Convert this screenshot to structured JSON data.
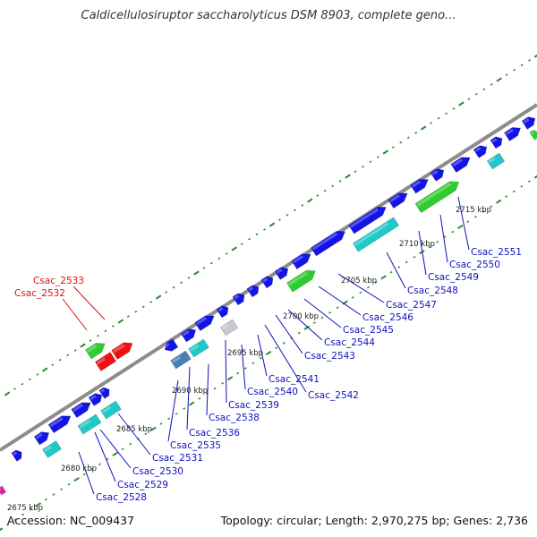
{
  "title": "Caldicellulosiruptor saccharolyticus DSM 8903, complete geno...",
  "footer": {
    "accession": "Accession: NC_009437",
    "summary": "Topology: circular; Length: 2,970,275 bp; Genes: 2,736"
  },
  "colors": {
    "backbone": "#8c8c8c",
    "dots": "#2e8b2e",
    "forward_gene": "#1414e6",
    "reverse_gene": "#20c8c8",
    "green_gene": "#2ecc2e",
    "red_gene": "#ee1111",
    "steel_gene": "#4a7fb5",
    "grey_gene": "#c8c8d2",
    "label_blue": "#1010c0",
    "label_red": "#dd1111"
  },
  "kbp_marks": [
    "2675 kbp",
    "2680 kbp",
    "2685 kbp",
    "2690 kbp",
    "2695 kbp",
    "2700 kbp",
    "2705 kbp",
    "2710 kbp",
    "2715 kbp"
  ],
  "gene_labels_red": [
    "Csac_2533",
    "Csac_2532"
  ],
  "gene_labels_blue": [
    "Csac_2528",
    "Csac_2529",
    "Csac_2530",
    "Csac_2531",
    "Csac_2535",
    "Csac_2536",
    "Csac_2538",
    "Csac_2539",
    "Csac_2540",
    "Csac_2541",
    "Csac_2542",
    "Csac_2543",
    "Csac_2544",
    "Csac_2545",
    "Csac_2546",
    "Csac_2547",
    "Csac_2548",
    "Csac_2549",
    "Csac_2550",
    "Csac_2551"
  ]
}
